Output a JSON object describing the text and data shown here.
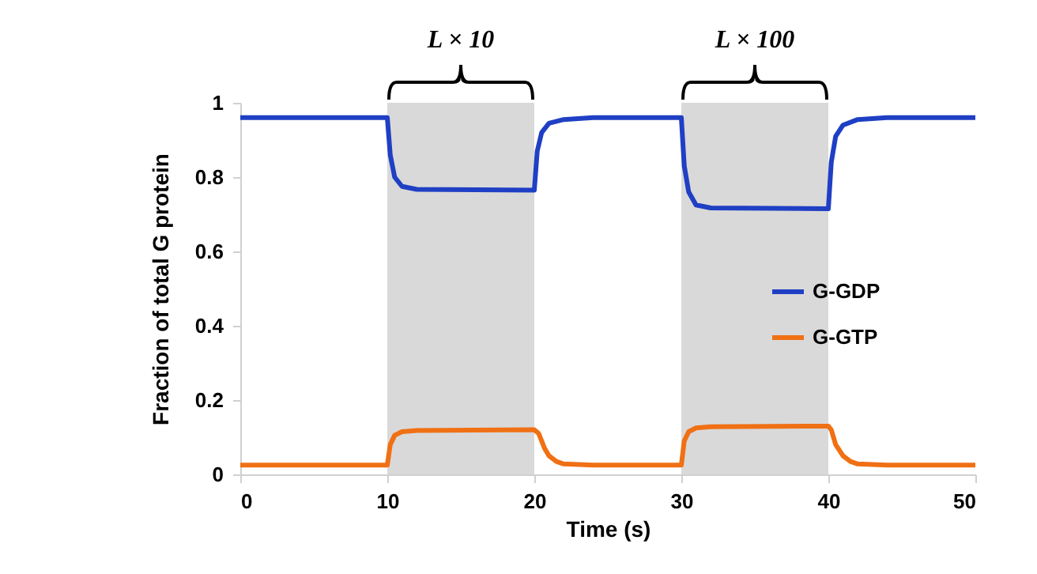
{
  "chart_data": {
    "type": "line",
    "xlabel": "Time (s)",
    "ylabel": "Fraction of total G protein",
    "xlim": [
      0,
      50
    ],
    "xticks": [
      0,
      10,
      20,
      30,
      40,
      50
    ],
    "ylim": [
      0,
      1
    ],
    "yticks": [
      0,
      0.2,
      0.4,
      0.6,
      0.8,
      1
    ],
    "grid": false,
    "legend": "right",
    "marker": "none",
    "line_style": "solid",
    "bands": [
      {
        "axis": "x",
        "from": 10,
        "to": 20,
        "label": "L × 10",
        "color": "#d9d9d9"
      },
      {
        "axis": "x",
        "from": 30,
        "to": 40,
        "label": "L × 100",
        "color": "#d9d9d9"
      }
    ],
    "series": [
      {
        "name": "G-GDP",
        "color": "#1f3fc4",
        "x": [
          0,
          10,
          10.2,
          10.5,
          11,
          12,
          20,
          20.2,
          20.5,
          21,
          22,
          24,
          30,
          30.2,
          30.5,
          31,
          32,
          40,
          40.2,
          40.5,
          41,
          42,
          44,
          50
        ],
        "values": [
          0.96,
          0.96,
          0.86,
          0.8,
          0.775,
          0.767,
          0.765,
          0.87,
          0.92,
          0.945,
          0.955,
          0.96,
          0.96,
          0.83,
          0.76,
          0.725,
          0.717,
          0.715,
          0.84,
          0.91,
          0.94,
          0.955,
          0.96,
          0.96
        ]
      },
      {
        "name": "G-GTP",
        "color": "#f07014",
        "x": [
          0,
          10,
          10.2,
          10.5,
          11,
          12,
          20,
          20.3,
          20.7,
          21,
          21.5,
          22,
          24,
          30,
          30.2,
          30.5,
          31,
          32,
          40,
          40.2,
          40.5,
          41,
          41.5,
          42,
          44,
          50
        ],
        "values": [
          0.025,
          0.025,
          0.08,
          0.105,
          0.115,
          0.118,
          0.12,
          0.11,
          0.07,
          0.05,
          0.035,
          0.028,
          0.025,
          0.025,
          0.09,
          0.115,
          0.125,
          0.128,
          0.13,
          0.12,
          0.08,
          0.05,
          0.035,
          0.028,
          0.025,
          0.025
        ]
      }
    ]
  }
}
